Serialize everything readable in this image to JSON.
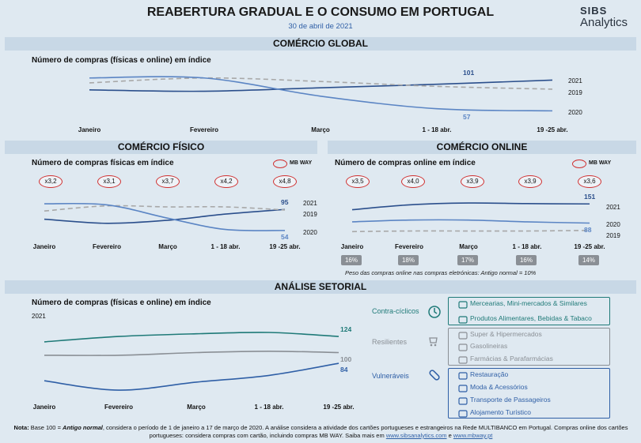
{
  "header": {
    "title": "REABERTURA GRADUAL E O CONSUMO EM PORTUGAL",
    "date": "30 de abril de 2021",
    "logo_top": "SIBS",
    "logo_bottom": "Analytics"
  },
  "colors": {
    "y2021": "#2b4f8c",
    "y2020": "#5b85c4",
    "y2019": "#a8a8a8",
    "counter": "#1f7a78",
    "resilient": "#8a8f95",
    "vulnerable": "#2f5fa6",
    "band": "#c8d8e6",
    "pill_border": "#d03030"
  },
  "sections": {
    "global": "COMÉRCIO GLOBAL",
    "fisico": "COMÉRCIO FÍSICO",
    "online": "COMÉRCIO ONLINE",
    "setorial": "ANÁLISE SETORIAL"
  },
  "mbway": "MB WAY",
  "chart_data": [
    {
      "id": "global",
      "type": "line",
      "subtitle": "Número de compras (físicas e online) em índice",
      "categories": [
        "Janeiro",
        "Fevereiro",
        "Março",
        "1 - 18 abr.",
        "19 -25 abr."
      ],
      "series": [
        {
          "name": "2021",
          "values": [
            87,
            85,
            90,
            95,
            101
          ],
          "label": "101"
        },
        {
          "name": "2019",
          "values": [
            97,
            104,
            99,
            92,
            88
          ],
          "label": ""
        },
        {
          "name": "2020",
          "values": [
            104,
            104,
            78,
            60,
            57
          ],
          "label": "57"
        }
      ],
      "ylim": [
        45,
        115
      ]
    },
    {
      "id": "fisico",
      "type": "line",
      "subtitle": "Número de compras físicas em índice",
      "categories": [
        "Janeiro",
        "Fevereiro",
        "Março",
        "1 - 18 abr.",
        "19 -25 abr."
      ],
      "series": [
        {
          "name": "2021",
          "values": [
            76,
            68,
            74,
            86,
            95
          ],
          "label": "95"
        },
        {
          "name": "2019",
          "values": [
            92,
            102,
            100,
            100,
            94
          ],
          "label": ""
        },
        {
          "name": "2020",
          "values": [
            106,
            104,
            78,
            56,
            54
          ],
          "label": "54"
        }
      ],
      "multipliers": [
        "x3,2",
        "x3,1",
        "x3,7",
        "x4,2",
        "x4,8"
      ],
      "ylim": [
        40,
        120
      ]
    },
    {
      "id": "online",
      "type": "line",
      "subtitle": "Número de compras online em índice",
      "categories": [
        "Janeiro",
        "Fevereiro",
        "Março",
        "1 - 18 abr.",
        "19 -25 abr."
      ],
      "series": [
        {
          "name": "2021",
          "values": [
            132,
            148,
            154,
            152,
            151
          ],
          "label": "151"
        },
        {
          "name": "2020",
          "values": [
            92,
            98,
            98,
            92,
            88
          ],
          "label": "88"
        },
        {
          "name": "2019",
          "values": [
            60,
            62,
            62,
            62,
            64
          ],
          "label": ""
        }
      ],
      "multipliers": [
        "x3,5",
        "x4,0",
        "x3,9",
        "x3,9",
        "x3,6"
      ],
      "shares": [
        "16%",
        "18%",
        "17%",
        "16%",
        "14%"
      ],
      "share_note": "Peso das compras online nas compras eletrónicas: Antigo normal = 10%",
      "ylim": [
        40,
        175
      ]
    },
    {
      "id": "setorial",
      "type": "line",
      "subtitle": "Número de compras (físicas e online) em índice",
      "year_label": "2021",
      "categories": [
        "Janeiro",
        "Fevereiro",
        "Março",
        "1 - 18 abr.",
        "19 -25 abr."
      ],
      "series": [
        {
          "name": "Contra-cíclicos",
          "values": [
            116,
            124,
            128,
            130,
            124
          ],
          "label": "124"
        },
        {
          "name": "Resilientes",
          "values": [
            96,
            96,
            100,
            102,
            100
          ],
          "label": "100"
        },
        {
          "name": "Vulneráveis",
          "values": [
            58,
            44,
            56,
            66,
            84
          ],
          "label": "84"
        }
      ],
      "ylim": [
        30,
        150
      ]
    }
  ],
  "legend_years": [
    "2021",
    "2019",
    "2020"
  ],
  "legend_years_online": [
    "2021",
    "2020",
    "2019"
  ],
  "sectors": {
    "counter_label": "Contra-cíclicos",
    "counter_items": [
      "Mercearias, Mini-mercados & Similares",
      "Produtos Alimentares, Bebidas & Tabaco"
    ],
    "resilient_label": "Resilientes",
    "resilient_items": [
      "Super & Hipermercados",
      "Gasolineiras",
      "Farmácias & Parafarmácias"
    ],
    "vulnerable_label": "Vulneráveis",
    "vulnerable_items": [
      "Restauração",
      "Moda & Acessórios",
      "Transporte de Passageiros",
      "Alojamento Turístico"
    ]
  },
  "note": {
    "lead": "Nota:",
    "text1": " Base 100 = ",
    "italic": "Antigo normal",
    "text2": ", considera o período de 1 de janeiro a 17 de março de 2020. A análise considera a atividade dos cartões portugueses e estrangeiros na Rede MULTIBANCO em Portugal. Compras online dos cartões portugueses: considera compras com cartão, incluindo compras MB WAY. Saiba mais em ",
    "link1": "www.sibsanalytics.com",
    "and": " e ",
    "link2": "www.mbway.pt"
  }
}
